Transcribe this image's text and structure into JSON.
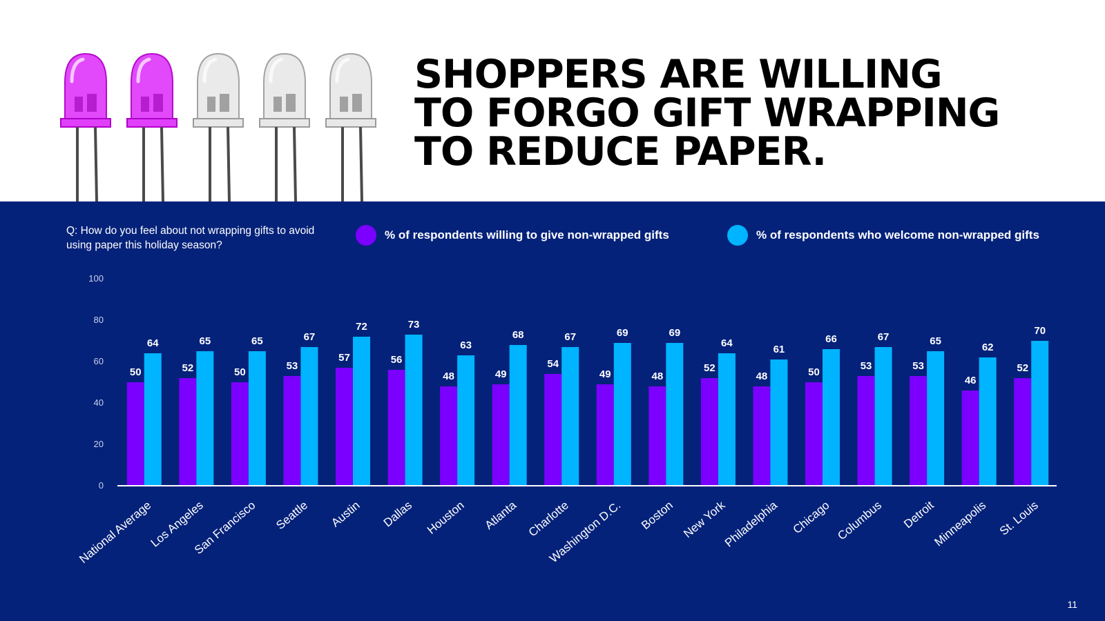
{
  "headline": [
    "SHOPPERS ARE WILLING",
    "TO FORGO GIFT WRAPPING",
    "TO REDUCE PAPER."
  ],
  "question": "Q: How do you feel about not wrapping gifts to avoid using paper this holiday season?",
  "page_number": "11",
  "bulbs": {
    "lit_count": 2,
    "total": 5,
    "lit_color": "#e040fb",
    "unlit_color": "#e8e8e8"
  },
  "colors": {
    "top_background": "#ffffff",
    "panel_background": "#05227a",
    "series_1": "#7b00ff",
    "series_2": "#00b4ff"
  },
  "chart_data": {
    "type": "bar",
    "categories": [
      "National Average",
      "Los Angeles",
      "San Francisco",
      "Seattle",
      "Austin",
      "Dallas",
      "Houston",
      "Atlanta",
      "Charlotte",
      "Washington D.C.",
      "Boston",
      "New York",
      "Philadelphia",
      "Chicago",
      "Columbus",
      "Detroit",
      "Minneapolis",
      "St. Louis"
    ],
    "series": [
      {
        "name": "% of respondents willing to give non-wrapped gifts",
        "color": "#7b00ff",
        "values": [
          50,
          52,
          50,
          53,
          57,
          56,
          48,
          49,
          54,
          49,
          48,
          52,
          48,
          50,
          53,
          53,
          46,
          52
        ]
      },
      {
        "name": "% of respondents who welcome non-wrapped gifts",
        "color": "#00b4ff",
        "values": [
          64,
          65,
          65,
          67,
          72,
          73,
          63,
          68,
          67,
          69,
          69,
          64,
          61,
          66,
          67,
          65,
          62,
          70
        ]
      }
    ],
    "yticks": [
      "0",
      "20",
      "40",
      "60",
      "80",
      "100"
    ],
    "ylim": [
      0,
      100
    ],
    "grid": false,
    "data_labels": true,
    "legend_placement": "top"
  }
}
